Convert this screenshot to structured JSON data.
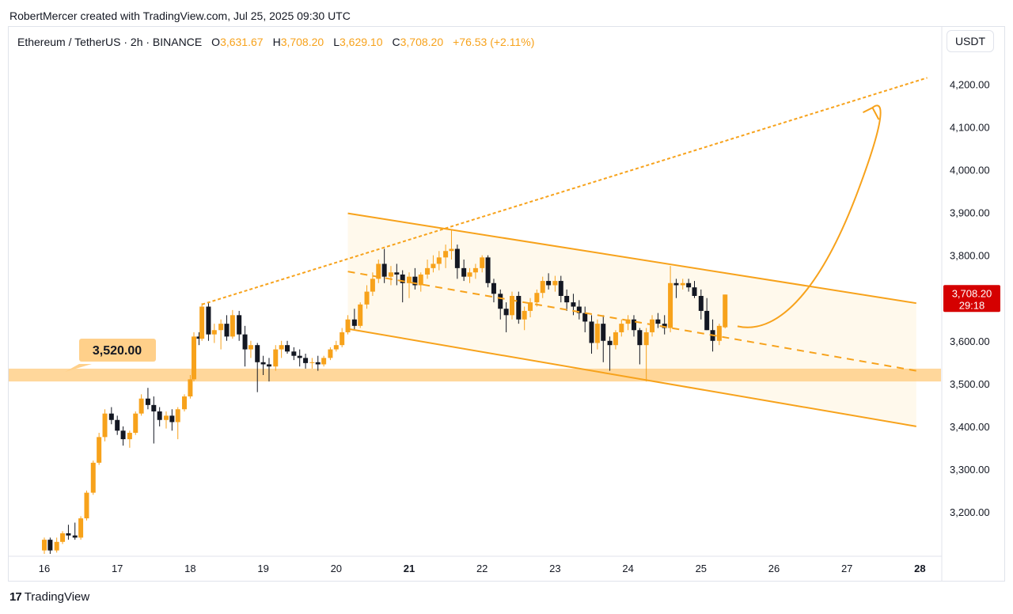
{
  "header": {
    "attribution": "RobertMercer created with TradingView.com, Jul 25, 2025 09:30 UTC"
  },
  "legend": {
    "symbol": "Ethereum / TetherUS · 2h · BINANCE",
    "open_label": "O",
    "open": "3,631.67",
    "high_label": "H",
    "high": "3,708.20",
    "low_label": "L",
    "low": "3,629.10",
    "close_label": "C",
    "close": "3,708.20",
    "change": "+76.53 (+2.11%)"
  },
  "currency_button": "USDT",
  "price_tag": {
    "price": "3,708.20",
    "countdown": "29:18"
  },
  "level_label": "3,520.00",
  "footer": {
    "brand": "TradingView"
  },
  "colors": {
    "accent": "#f7a21b",
    "band": "#ffd08a",
    "bear": "#131722",
    "tag": "#d50000",
    "channel_fill": "#fff9ec"
  },
  "chart_data": {
    "type": "candlestick",
    "timeframe": "2h",
    "x_ticks": [
      "16",
      "17",
      "18",
      "19",
      "20",
      "21",
      "22",
      "23",
      "24",
      "25",
      "26",
      "27",
      "28"
    ],
    "x_tick_days": [
      16,
      17,
      18,
      19,
      20,
      21,
      22,
      23,
      24,
      25,
      26,
      27,
      28
    ],
    "bold_ticks": [
      "21",
      "28"
    ],
    "y_ticks": [
      "4,200.00",
      "4,100.00",
      "4,000.00",
      "3,900.00",
      "3,800.00",
      "3,700.00",
      "3,600.00",
      "3,500.00",
      "3,400.00",
      "3,300.00",
      "3,200.00"
    ],
    "y_tick_values": [
      4200,
      4100,
      4000,
      3900,
      3800,
      3700,
      3600,
      3500,
      3400,
      3300,
      3200
    ],
    "ylim": [
      3100,
      4270
    ],
    "xlim": [
      15.7,
      28.2
    ],
    "support_zone": [
      3505,
      3535
    ],
    "support_level": 3520,
    "channel": {
      "upper": [
        [
          20.16,
          3898
        ],
        [
          27.95,
          3688
        ]
      ],
      "lower": [
        [
          20.16,
          3628
        ],
        [
          27.95,
          3400
        ]
      ],
      "mid": [
        [
          20.16,
          3762
        ],
        [
          27.95,
          3530
        ]
      ]
    },
    "rising_trendline": [
      [
        18.16,
        3685
      ],
      [
        28.1,
        4215
      ]
    ],
    "projection_arrow": [
      [
        25.5,
        3634
      ],
      [
        26.0,
        3615
      ],
      [
        26.6,
        3700
      ],
      [
        27.15,
        3950
      ],
      [
        27.35,
        4145
      ]
    ],
    "candles": [
      [
        16.0,
        3110,
        3140,
        3095,
        3135
      ],
      [
        16.08,
        3135,
        3140,
        3100,
        3110
      ],
      [
        16.17,
        3110,
        3140,
        3105,
        3130
      ],
      [
        16.25,
        3130,
        3155,
        3125,
        3150
      ],
      [
        16.33,
        3150,
        3170,
        3135,
        3145
      ],
      [
        16.42,
        3145,
        3175,
        3135,
        3140
      ],
      [
        16.5,
        3140,
        3190,
        3135,
        3185
      ],
      [
        16.58,
        3185,
        3250,
        3180,
        3245
      ],
      [
        16.67,
        3245,
        3320,
        3240,
        3315
      ],
      [
        16.75,
        3315,
        3385,
        3310,
        3375
      ],
      [
        16.83,
        3375,
        3440,
        3365,
        3430
      ],
      [
        16.92,
        3430,
        3445,
        3405,
        3415
      ],
      [
        17.0,
        3415,
        3425,
        3380,
        3390
      ],
      [
        17.08,
        3390,
        3400,
        3355,
        3370
      ],
      [
        17.17,
        3370,
        3390,
        3350,
        3385
      ],
      [
        17.25,
        3385,
        3435,
        3380,
        3430
      ],
      [
        17.33,
        3430,
        3475,
        3425,
        3465
      ],
      [
        17.42,
        3465,
        3490,
        3440,
        3450
      ],
      [
        17.5,
        3450,
        3470,
        3360,
        3435
      ],
      [
        17.58,
        3435,
        3445,
        3400,
        3415
      ],
      [
        17.67,
        3415,
        3435,
        3395,
        3425
      ],
      [
        17.75,
        3425,
        3440,
        3390,
        3410
      ],
      [
        17.83,
        3410,
        3445,
        3370,
        3440
      ],
      [
        17.92,
        3440,
        3475,
        3435,
        3470
      ],
      [
        18.0,
        3470,
        3520,
        3465,
        3510
      ],
      [
        18.05,
        3510,
        3620,
        3505,
        3610
      ],
      [
        18.12,
        3610,
        3620,
        3590,
        3605
      ],
      [
        18.16,
        3605,
        3688,
        3600,
        3680
      ],
      [
        18.25,
        3680,
        3688,
        3600,
        3615
      ],
      [
        18.33,
        3615,
        3640,
        3595,
        3625
      ],
      [
        18.42,
        3625,
        3650,
        3580,
        3640
      ],
      [
        18.5,
        3640,
        3660,
        3600,
        3610
      ],
      [
        18.58,
        3610,
        3672,
        3605,
        3660
      ],
      [
        18.67,
        3660,
        3670,
        3600,
        3615
      ],
      [
        18.75,
        3615,
        3635,
        3540,
        3580
      ],
      [
        18.83,
        3580,
        3600,
        3560,
        3590
      ],
      [
        18.92,
        3590,
        3595,
        3480,
        3550
      ],
      [
        19.0,
        3550,
        3565,
        3520,
        3545
      ],
      [
        19.08,
        3545,
        3560,
        3505,
        3540
      ],
      [
        19.17,
        3540,
        3590,
        3530,
        3580
      ],
      [
        19.25,
        3580,
        3600,
        3560,
        3590
      ],
      [
        19.33,
        3590,
        3600,
        3570,
        3575
      ],
      [
        19.42,
        3575,
        3585,
        3555,
        3565
      ],
      [
        19.5,
        3565,
        3580,
        3540,
        3560
      ],
      [
        19.58,
        3560,
        3570,
        3535,
        3548
      ],
      [
        19.67,
        3548,
        3560,
        3535,
        3550
      ],
      [
        19.75,
        3550,
        3565,
        3530,
        3545
      ],
      [
        19.83,
        3545,
        3565,
        3540,
        3560
      ],
      [
        19.92,
        3560,
        3585,
        3555,
        3580
      ],
      [
        20.0,
        3580,
        3600,
        3575,
        3590
      ],
      [
        20.08,
        3590,
        3630,
        3585,
        3620
      ],
      [
        20.16,
        3620,
        3660,
        3615,
        3650
      ],
      [
        20.25,
        3650,
        3675,
        3625,
        3635
      ],
      [
        20.33,
        3635,
        3690,
        3630,
        3685
      ],
      [
        20.42,
        3685,
        3730,
        3675,
        3715
      ],
      [
        20.5,
        3715,
        3760,
        3705,
        3745
      ],
      [
        20.58,
        3745,
        3790,
        3735,
        3780
      ],
      [
        20.66,
        3780,
        3815,
        3735,
        3750
      ],
      [
        20.75,
        3750,
        3775,
        3730,
        3760
      ],
      [
        20.83,
        3760,
        3780,
        3730,
        3755
      ],
      [
        20.91,
        3755,
        3765,
        3690,
        3735
      ],
      [
        21.0,
        3735,
        3760,
        3700,
        3750
      ],
      [
        21.08,
        3750,
        3770,
        3720,
        3730
      ],
      [
        21.16,
        3730,
        3760,
        3715,
        3755
      ],
      [
        21.25,
        3755,
        3790,
        3745,
        3770
      ],
      [
        21.33,
        3770,
        3800,
        3760,
        3780
      ],
      [
        21.41,
        3780,
        3810,
        3765,
        3795
      ],
      [
        21.5,
        3795,
        3825,
        3770,
        3810
      ],
      [
        21.58,
        3810,
        3860,
        3790,
        3815
      ],
      [
        21.66,
        3815,
        3825,
        3745,
        3770
      ],
      [
        21.75,
        3770,
        3790,
        3740,
        3750
      ],
      [
        21.83,
        3750,
        3770,
        3735,
        3760
      ],
      [
        21.91,
        3760,
        3780,
        3745,
        3770
      ],
      [
        22.0,
        3770,
        3800,
        3760,
        3795
      ],
      [
        22.08,
        3795,
        3800,
        3725,
        3735
      ],
      [
        22.16,
        3735,
        3745,
        3690,
        3710
      ],
      [
        22.25,
        3710,
        3720,
        3650,
        3675
      ],
      [
        22.33,
        3675,
        3690,
        3620,
        3660
      ],
      [
        22.41,
        3660,
        3715,
        3650,
        3705
      ],
      [
        22.5,
        3705,
        3715,
        3640,
        3650
      ],
      [
        22.58,
        3650,
        3680,
        3625,
        3670
      ],
      [
        22.66,
        3670,
        3700,
        3655,
        3690
      ],
      [
        22.75,
        3690,
        3720,
        3680,
        3712
      ],
      [
        22.83,
        3712,
        3750,
        3700,
        3740
      ],
      [
        22.91,
        3740,
        3758,
        3720,
        3730
      ],
      [
        23.0,
        3730,
        3752,
        3715,
        3740
      ],
      [
        23.08,
        3740,
        3752,
        3690,
        3705
      ],
      [
        23.16,
        3705,
        3720,
        3670,
        3690
      ],
      [
        23.25,
        3690,
        3710,
        3660,
        3680
      ],
      [
        23.33,
        3680,
        3695,
        3650,
        3665
      ],
      [
        23.41,
        3665,
        3680,
        3620,
        3645
      ],
      [
        23.5,
        3645,
        3660,
        3570,
        3595
      ],
      [
        23.58,
        3595,
        3650,
        3580,
        3640
      ],
      [
        23.66,
        3640,
        3660,
        3550,
        3600
      ],
      [
        23.75,
        3600,
        3610,
        3530,
        3590
      ],
      [
        23.83,
        3590,
        3625,
        3580,
        3620
      ],
      [
        23.91,
        3620,
        3650,
        3610,
        3640
      ],
      [
        24.0,
        3640,
        3660,
        3625,
        3650
      ],
      [
        24.08,
        3650,
        3660,
        3610,
        3625
      ],
      [
        24.16,
        3625,
        3630,
        3545,
        3590
      ],
      [
        24.25,
        3590,
        3630,
        3505,
        3620
      ],
      [
        24.33,
        3620,
        3660,
        3610,
        3650
      ],
      [
        24.41,
        3650,
        3665,
        3630,
        3640
      ],
      [
        24.5,
        3640,
        3660,
        3615,
        3630
      ],
      [
        24.58,
        3630,
        3775,
        3620,
        3735
      ],
      [
        24.66,
        3735,
        3745,
        3700,
        3730
      ],
      [
        24.75,
        3730,
        3745,
        3720,
        3735
      ],
      [
        24.83,
        3735,
        3745,
        3715,
        3725
      ],
      [
        24.91,
        3725,
        3740,
        3700,
        3705
      ],
      [
        25.0,
        3705,
        3720,
        3650,
        3670
      ],
      [
        25.08,
        3670,
        3700,
        3625,
        3625
      ],
      [
        25.16,
        3625,
        3650,
        3575,
        3600
      ],
      [
        25.25,
        3600,
        3640,
        3590,
        3635
      ],
      [
        25.33,
        3631.67,
        3708.2,
        3629.1,
        3708.2
      ]
    ]
  }
}
